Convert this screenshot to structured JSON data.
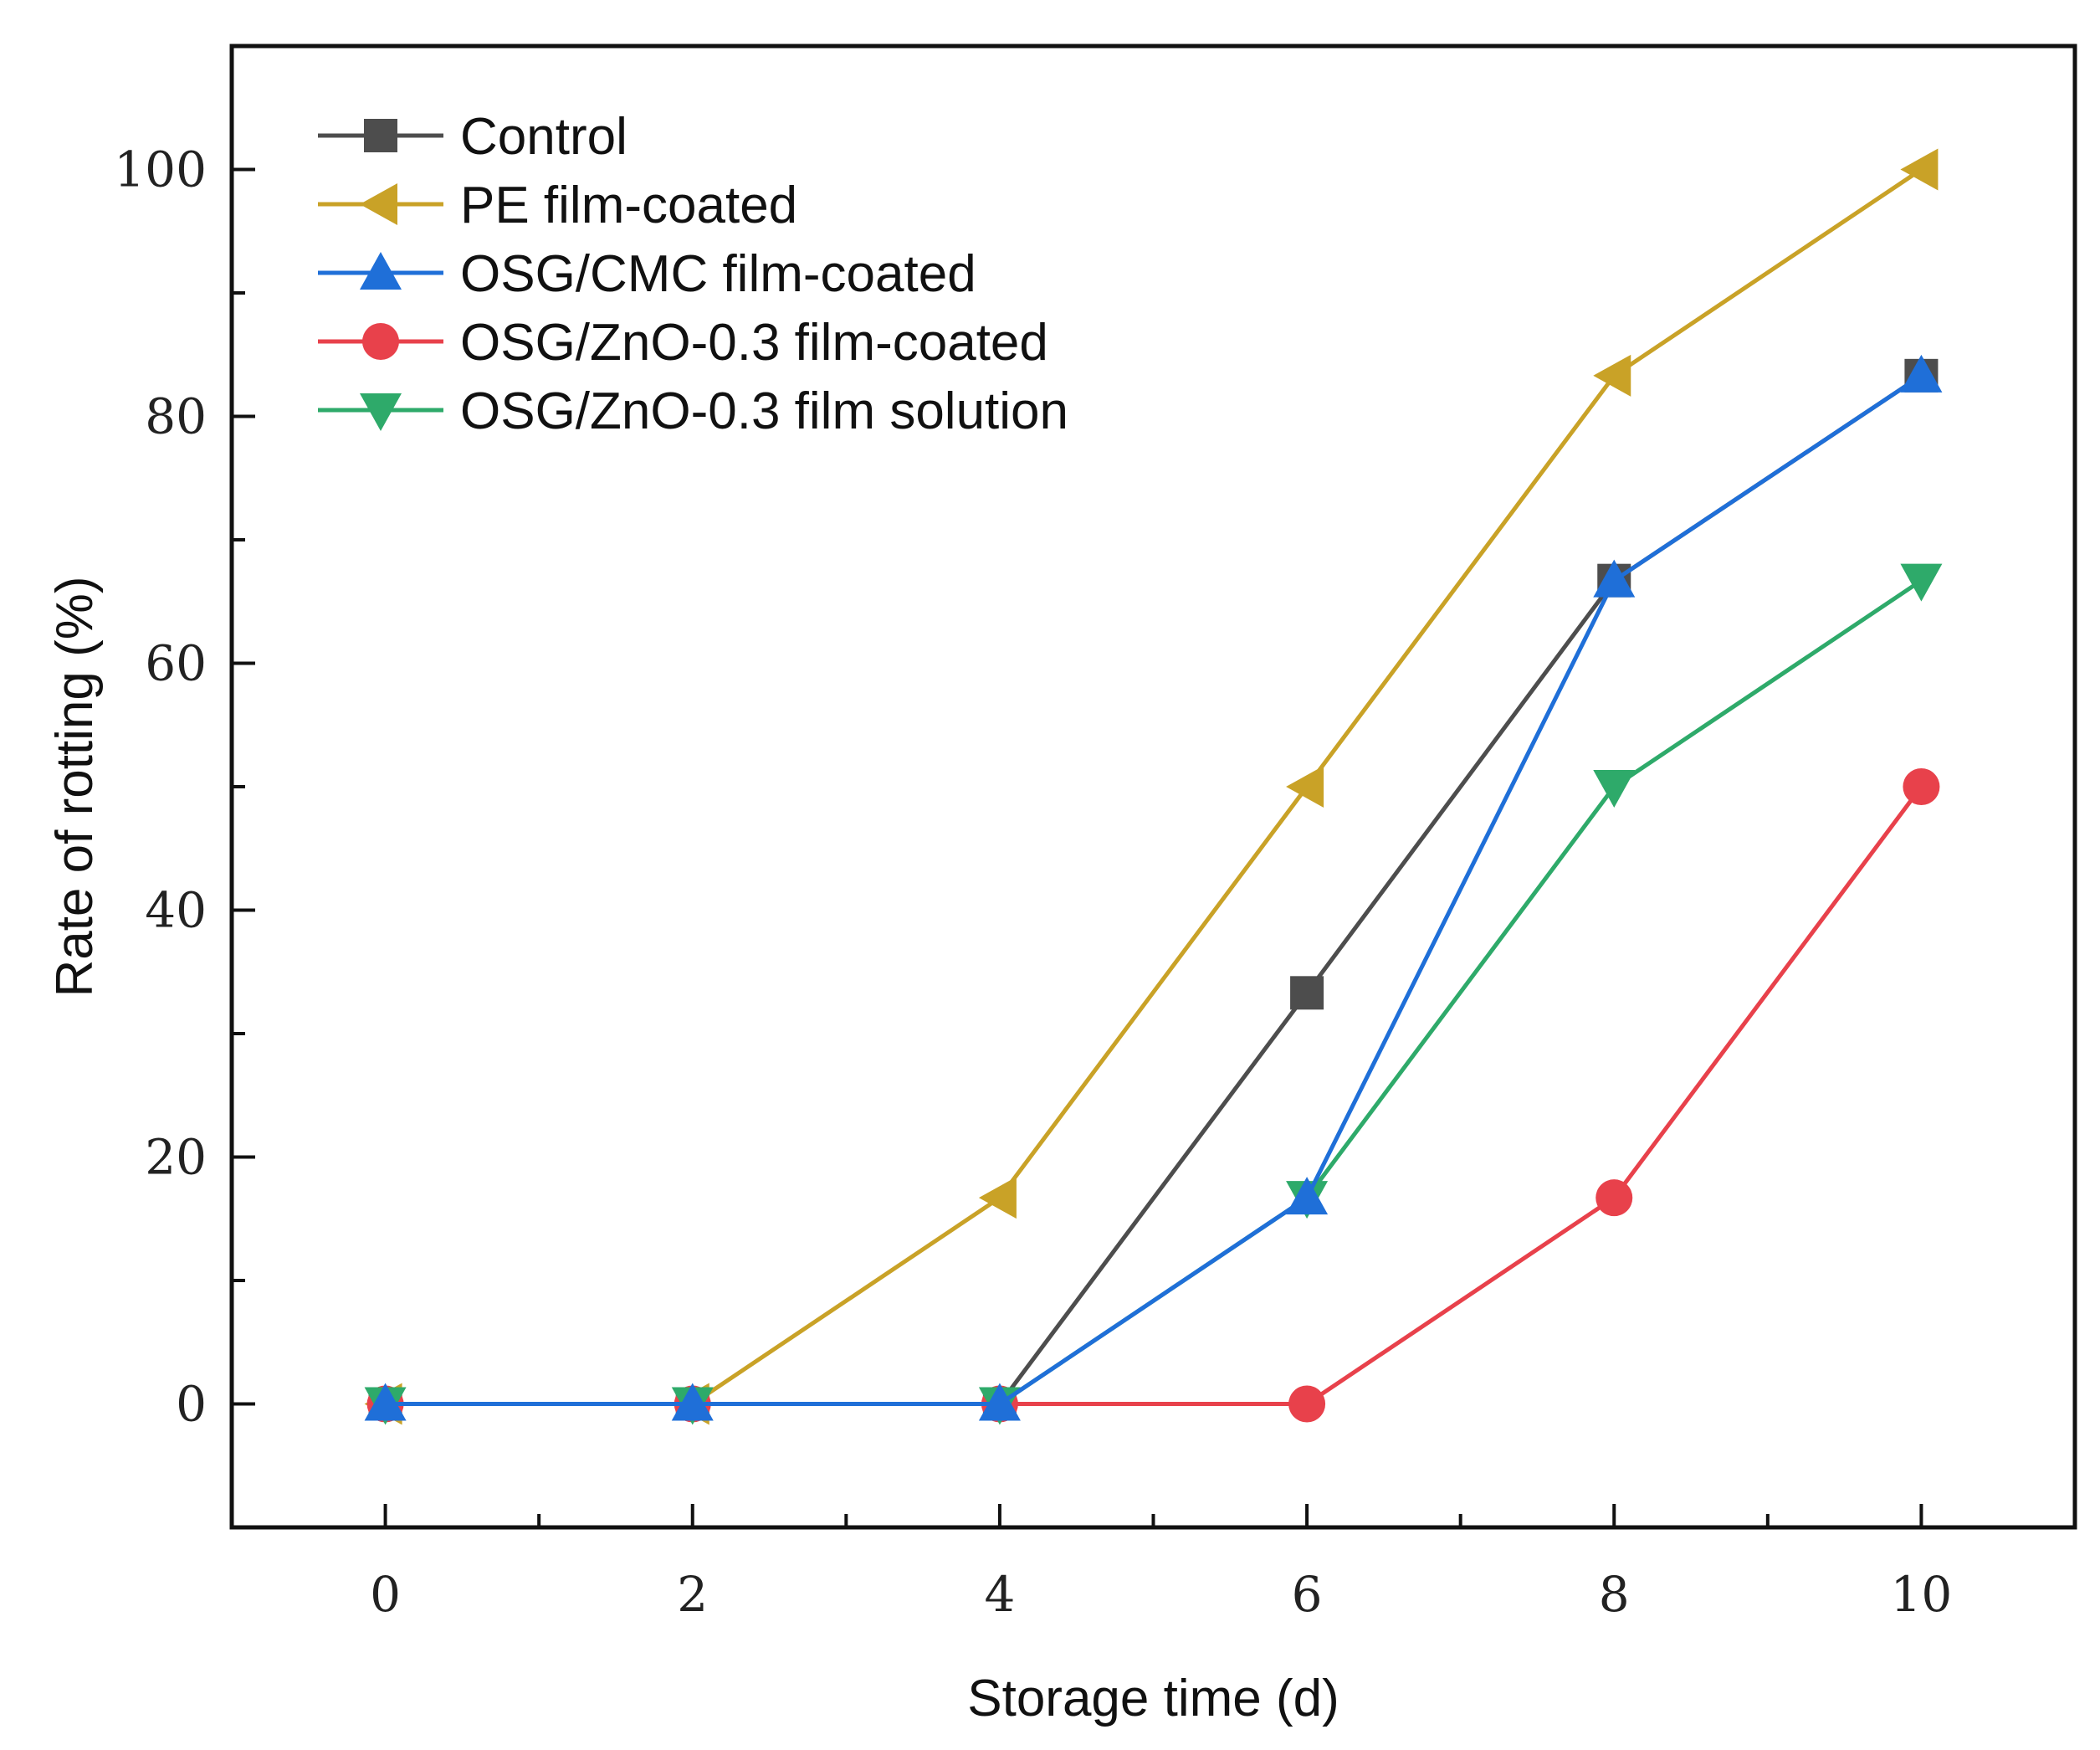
{
  "chart_data": {
    "type": "line",
    "xlabel": "Storage time (d)",
    "ylabel": "Rate of rotting (%)",
    "xlim": [
      -1,
      11
    ],
    "ylim": [
      -10,
      110
    ],
    "xticks": [
      0,
      2,
      4,
      6,
      8,
      10
    ],
    "yticks": [
      0,
      20,
      40,
      60,
      80,
      100
    ],
    "grid": false,
    "legend_position": "top-left",
    "x": [
      0,
      2,
      4,
      6,
      8,
      10
    ],
    "series": [
      {
        "name": "Control",
        "values": [
          0,
          0,
          0,
          33.3,
          66.7,
          83.3
        ],
        "color": "#4d4d4d",
        "marker": "square"
      },
      {
        "name": "PE film-coated",
        "values": [
          0,
          0,
          16.7,
          50,
          83.3,
          100
        ],
        "color": "#c9a227",
        "marker": "triangle-left"
      },
      {
        "name": "OSG/CMC film-coated",
        "values": [
          0,
          0,
          0,
          16.7,
          66.7,
          83.3
        ],
        "color": "#1f6fd8",
        "marker": "triangle-up"
      },
      {
        "name": "OSG/ZnO-0.3 film-coated",
        "values": [
          0,
          0,
          0,
          0,
          16.7,
          50
        ],
        "color": "#e8414b",
        "marker": "circle"
      },
      {
        "name": "OSG/ZnO-0.3 film solution",
        "values": [
          0,
          0,
          0,
          16.7,
          50,
          66.7
        ],
        "color": "#2eaa6a",
        "marker": "triangle-down"
      }
    ]
  }
}
